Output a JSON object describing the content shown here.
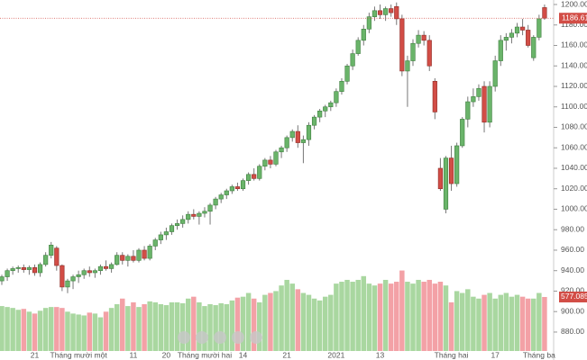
{
  "chart_data": {
    "type": "candlestick",
    "categories": [
      null,
      null,
      null,
      null,
      null,
      null,
      "21",
      null,
      null,
      null,
      null,
      null,
      null,
      null,
      "Tháng mười một",
      null,
      null,
      null,
      null,
      null,
      null,
      null,
      null,
      null,
      "11",
      null,
      null,
      null,
      null,
      null,
      "20",
      null,
      null,
      null,
      null,
      null,
      null,
      "Tháng mười hai",
      null,
      null,
      null,
      null,
      null,
      null,
      "14",
      null,
      null,
      null,
      null,
      null,
      null,
      null,
      "21",
      null,
      null,
      null,
      null,
      null,
      null,
      null,
      null,
      "2021",
      null,
      null,
      null,
      null,
      null,
      null,
      null,
      "13",
      null,
      null,
      null,
      null,
      null,
      null,
      null,
      null,
      null,
      null,
      null,
      null,
      "Tháng hai",
      null,
      null,
      null,
      null,
      null,
      null,
      null,
      "17",
      null,
      null,
      null,
      null,
      null,
      null,
      null,
      "Tháng ba",
      null
    ],
    "open": [
      930,
      934,
      940,
      942,
      943,
      941,
      943,
      938,
      946,
      955,
      962,
      945,
      924,
      930,
      934,
      936,
      940,
      938,
      940,
      944,
      942,
      946,
      955,
      950,
      954,
      950,
      960,
      952,
      964,
      970,
      975,
      978,
      984,
      986,
      990,
      995,
      993,
      996,
      998,
      1004,
      1010,
      1014,
      1018,
      1022,
      1020,
      1028,
      1034,
      1030,
      1042,
      1048,
      1044,
      1056,
      1060,
      1070,
      1076,
      1065,
      1068,
      1082,
      1090,
      1096,
      1100,
      1104,
      1115,
      1125,
      1140,
      1152,
      1165,
      1176,
      1188,
      1194,
      1190,
      1196,
      1198,
      1186,
      1135,
      1145,
      1162,
      1170,
      1165,
      1125,
      1040,
      1000,
      1050,
      1025,
      1062,
      1088,
      1105,
      1110,
      1120,
      1085,
      1120,
      1145,
      1165,
      1168,
      1172,
      1178,
      1175,
      1148,
      1168,
      1197
    ],
    "high": [
      936,
      942,
      944,
      945,
      946,
      945,
      946,
      948,
      958,
      968,
      964,
      946,
      932,
      936,
      940,
      942,
      944,
      942,
      946,
      950,
      948,
      958,
      958,
      956,
      960,
      962,
      964,
      966,
      972,
      978,
      982,
      986,
      990,
      994,
      998,
      1000,
      998,
      1002,
      1006,
      1012,
      1016,
      1020,
      1024,
      1026,
      1030,
      1036,
      1040,
      1044,
      1050,
      1052,
      1058,
      1062,
      1072,
      1078,
      1082,
      1072,
      1085,
      1092,
      1098,
      1102,
      1106,
      1118,
      1128,
      1142,
      1156,
      1168,
      1180,
      1192,
      1198,
      1200,
      1198,
      1200,
      1202,
      1190,
      1150,
      1166,
      1175,
      1174,
      1170,
      1128,
      1050,
      1052,
      1062,
      1065,
      1090,
      1110,
      1118,
      1122,
      1125,
      1125,
      1150,
      1170,
      1172,
      1176,
      1182,
      1186,
      1180,
      1170,
      1190,
      1200
    ],
    "low": [
      926,
      930,
      936,
      938,
      938,
      936,
      935,
      934,
      944,
      952,
      940,
      920,
      918,
      922,
      928,
      932,
      934,
      933,
      936,
      940,
      938,
      945,
      946,
      944,
      948,
      948,
      950,
      950,
      960,
      966,
      970,
      975,
      980,
      982,
      986,
      990,
      985,
      992,
      985,
      1000,
      1006,
      1010,
      1015,
      1018,
      1018,
      1024,
      1028,
      1028,
      1038,
      1040,
      1042,
      1050,
      1056,
      1066,
      1060,
      1045,
      1062,
      1078,
      1085,
      1090,
      1096,
      1100,
      1112,
      1122,
      1136,
      1150,
      1160,
      1172,
      1184,
      1186,
      1184,
      1188,
      1180,
      1130,
      1100,
      1140,
      1158,
      1160,
      1135,
      1088,
      1018,
      996,
      1018,
      1022,
      1060,
      1080,
      1100,
      1106,
      1075,
      1080,
      1115,
      1140,
      1155,
      1162,
      1168,
      1170,
      1158,
      1145,
      1165,
      1185
    ],
    "close": [
      934,
      940,
      942,
      943,
      941,
      943,
      938,
      946,
      955,
      965,
      945,
      924,
      930,
      934,
      936,
      940,
      938,
      940,
      944,
      942,
      946,
      955,
      950,
      954,
      950,
      960,
      952,
      964,
      970,
      975,
      978,
      984,
      986,
      990,
      995,
      993,
      996,
      998,
      1004,
      1010,
      1014,
      1018,
      1022,
      1020,
      1028,
      1034,
      1030,
      1042,
      1048,
      1044,
      1056,
      1060,
      1070,
      1076,
      1065,
      1068,
      1082,
      1090,
      1096,
      1100,
      1104,
      1115,
      1125,
      1140,
      1152,
      1165,
      1176,
      1188,
      1194,
      1190,
      1196,
      1192,
      1186,
      1135,
      1145,
      1162,
      1170,
      1165,
      1140,
      1095,
      1020,
      1050,
      1025,
      1062,
      1088,
      1105,
      1110,
      1118,
      1085,
      1120,
      1145,
      1165,
      1168,
      1172,
      1178,
      1175,
      1160,
      1168,
      1186,
      1186.61
    ],
    "volume": [
      480,
      470,
      460,
      440,
      450,
      420,
      400,
      430,
      460,
      470,
      470,
      460,
      420,
      400,
      390,
      380,
      410,
      400,
      360,
      420,
      460,
      500,
      560,
      480,
      520,
      470,
      500,
      530,
      520,
      500,
      490,
      520,
      520,
      510,
      560,
      580,
      520,
      480,
      500,
      490,
      510,
      500,
      540,
      570,
      580,
      620,
      560,
      520,
      600,
      620,
      640,
      700,
      760,
      720,
      660,
      620,
      600,
      560,
      540,
      580,
      600,
      720,
      740,
      760,
      740,
      760,
      800,
      720,
      700,
      720,
      760,
      720,
      740,
      860,
      740,
      720,
      760,
      740,
      760,
      720,
      740,
      700,
      520,
      640,
      620,
      660,
      580,
      560,
      600,
      620,
      560,
      600,
      620,
      580,
      600,
      580,
      560,
      560,
      620,
      577.085
    ],
    "up_color": "#6ab46a",
    "down_color": "#d24d46",
    "volume_up_color": "#a9d7a0",
    "volume_down_color": "#f3a1a6",
    "ylim": [
      861.5,
      1204.4
    ],
    "yticks": [
      {
        "value": 880,
        "label": "880.00"
      },
      {
        "value": 900,
        "label": "900.00"
      },
      {
        "value": 920,
        "label": "920.00"
      },
      {
        "value": 940,
        "label": "940.00"
      },
      {
        "value": 960,
        "label": "960.00"
      },
      {
        "value": 980,
        "label": "980.00"
      },
      {
        "value": 1000,
        "label": "1000.00"
      },
      {
        "value": 1020,
        "label": "1020.00"
      },
      {
        "value": 1040,
        "label": "1040.00"
      },
      {
        "value": 1060,
        "label": "1060.00"
      },
      {
        "value": 1080,
        "label": "1080.00"
      },
      {
        "value": 1100,
        "label": "1100.00"
      },
      {
        "value": 1120,
        "label": "1120.00"
      },
      {
        "value": 1140,
        "label": "1140.00"
      },
      {
        "value": 1160,
        "label": "1160.00"
      },
      {
        "value": 1180,
        "label": "1180.00"
      },
      {
        "value": 1200,
        "label": "1200.00"
      }
    ],
    "y2lim": [
      0,
      3750
    ]
  }
}
